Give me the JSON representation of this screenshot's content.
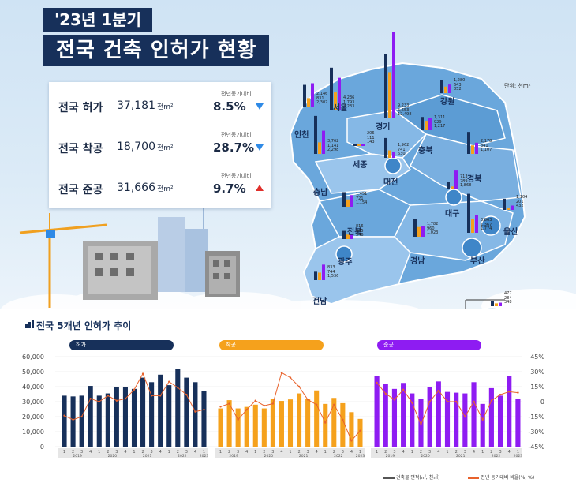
{
  "header": {
    "period": "'23년 1분기",
    "title": "전국 건축 인허가 현황"
  },
  "summary": {
    "yoy_label": "전년동기대비",
    "unit": "천m²",
    "rows": [
      {
        "label": "전국 허가",
        "value": "37,181",
        "yoy": "8.5%",
        "direction": "down"
      },
      {
        "label": "전국 착공",
        "value": "18,700",
        "yoy": "28.7%",
        "direction": "down"
      },
      {
        "label": "전국 준공",
        "value": "31,666",
        "yoy": "9.7%",
        "direction": "up"
      }
    ]
  },
  "map": {
    "unit_label": "단위: 천m²",
    "regions": [
      {
        "name": "서울",
        "values": [
          "4,236",
          "1,793",
          "3,233"
        ]
      },
      {
        "name": "경기",
        "values": [
          "9,233",
          "6,653",
          "12,498"
        ]
      },
      {
        "name": "강원",
        "values": [
          "1,280",
          "643",
          "852"
        ]
      },
      {
        "name": "인천",
        "values": [
          "2,146",
          "831",
          "2,307"
        ]
      },
      {
        "name": "충북",
        "values": [
          "1,311",
          "929",
          "1,217"
        ]
      },
      {
        "name": "세종",
        "values": [
          "206",
          "111",
          "143"
        ]
      },
      {
        "name": "충남",
        "values": [
          "3,762",
          "1,141",
          "2,298"
        ]
      },
      {
        "name": "대전",
        "values": [
          "1,962",
          "741",
          "630"
        ]
      },
      {
        "name": "경북",
        "values": [
          "2,178",
          "841",
          "1,107"
        ]
      },
      {
        "name": "대구",
        "values": [
          "713",
          "289",
          "1,868"
        ]
      },
      {
        "name": "전북",
        "values": [
          "1,451",
          "721",
          "1,154"
        ]
      },
      {
        "name": "울산",
        "values": [
          "1,104",
          "201",
          "432"
        ]
      },
      {
        "name": "광주",
        "values": [
          "816",
          "445",
          "546"
        ]
      },
      {
        "name": "경남",
        "values": [
          "1,782",
          "960",
          "1,023"
        ]
      },
      {
        "name": "부산",
        "values": [
          "3,863",
          "1,367",
          "1,774"
        ]
      },
      {
        "name": "전남",
        "values": [
          "833",
          "744",
          "1,536"
        ]
      },
      {
        "name": "제주",
        "values": [
          "477",
          "284",
          "348"
        ]
      }
    ]
  },
  "chart_data": {
    "type": "bar",
    "title": "전국 5개년 인허가 추이",
    "series": [
      {
        "name": "허가",
        "color": "#17305a",
        "values": [
          34000,
          33500,
          34000,
          40500,
          34000,
          35500,
          39500,
          40000,
          38500,
          46000,
          43000,
          48000,
          41000,
          52000,
          46000,
          43000,
          37000
        ],
        "yoy": [
          -14,
          -18,
          -15,
          3,
          0,
          6,
          1,
          3,
          12,
          28,
          6,
          6,
          20,
          14,
          7,
          -10,
          -8
        ]
      },
      {
        "name": "착공",
        "color": "#f5a11c",
        "values": [
          25500,
          31000,
          25500,
          26500,
          28000,
          25500,
          32000,
          30500,
          31500,
          35500,
          32000,
          37500,
          28500,
          32500,
          29000,
          23000,
          18500
        ],
        "yoy": [
          -5,
          -2,
          -18,
          -8,
          1,
          -4,
          -2,
          29,
          24,
          15,
          2,
          -3,
          -21,
          -3,
          -18,
          -39,
          -29
        ]
      },
      {
        "name": "준공",
        "color": "#8e1cf2",
        "values": [
          47000,
          42000,
          38500,
          42500,
          35500,
          32000,
          39500,
          43500,
          36500,
          36000,
          35500,
          43000,
          28500,
          39000,
          34000,
          47000,
          32000
        ],
        "yoy": [
          19,
          8,
          2,
          12,
          -1,
          -23,
          0,
          11,
          0,
          0,
          -15,
          0,
          -18,
          1,
          7,
          10,
          9
        ]
      }
    ],
    "categories": [
      "1",
      "2",
      "3",
      "4",
      "1",
      "2",
      "3",
      "4",
      "1",
      "2",
      "3",
      "4",
      "1",
      "2",
      "3",
      "4",
      "1"
    ],
    "year_labels": [
      "2019",
      "2020",
      "2021",
      "2022",
      "2023"
    ],
    "y_left": {
      "ticks": [
        "60,000",
        "50,000",
        "40,000",
        "30,000",
        "20,000",
        "10,000",
        "0"
      ],
      "ylim": [
        0,
        60000
      ]
    },
    "y_right": {
      "ticks": [
        "45%",
        "30%",
        "15%",
        "0",
        "-15%",
        "-30%",
        "-45%"
      ],
      "ylim": [
        -45,
        45
      ]
    },
    "legend": {
      "bar_label": "건축물 면적(㎡, 천㎡)",
      "line_label": "전년 동기대비 비율(%, %)"
    }
  }
}
